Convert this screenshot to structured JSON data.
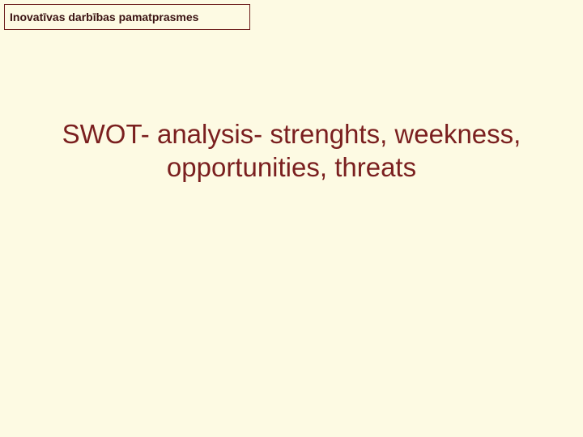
{
  "slide": {
    "background_color": "#fdfae3",
    "header": {
      "text": "Inovatīvas darbības pamatprasmes",
      "text_color": "#3a1212",
      "border_color": "#6b1a1a",
      "background_color": "#fdfae3",
      "font_size": 14,
      "font_weight": "bold"
    },
    "title": {
      "text": "SWOT- analysis- strenghts, weekness, opportunities, threats",
      "text_color": "#7a1f1f",
      "font_size": 33,
      "font_weight": "normal"
    }
  }
}
